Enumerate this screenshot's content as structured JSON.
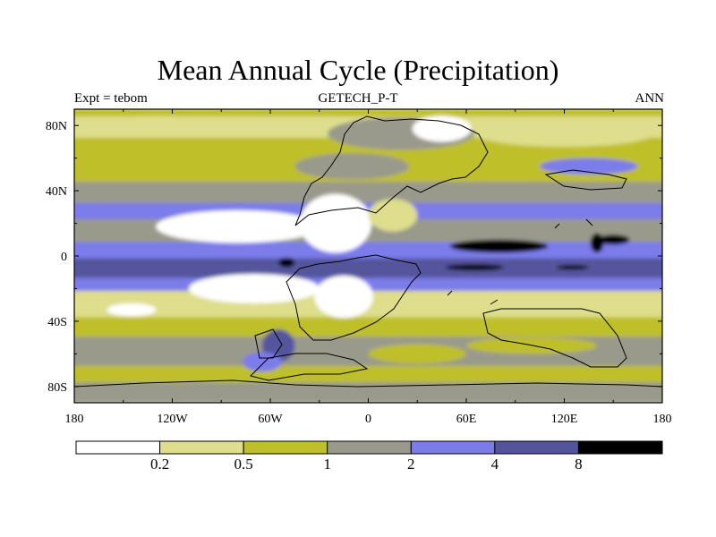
{
  "chart_data": {
    "type": "heatmap",
    "title": "Mean Annual Cycle (Precipitation)",
    "subtitle_left": "Expt = tebom",
    "subtitle_center": "GETECH_P-T",
    "subtitle_right": "ANN",
    "x_ticks": [
      "180",
      "120W",
      "60W",
      "0",
      "60E",
      "120E",
      "180"
    ],
    "x_tick_values": [
      -180,
      -120,
      -60,
      0,
      60,
      120,
      180
    ],
    "y_ticks": [
      "80N",
      "40N",
      "0",
      "40S",
      "80S"
    ],
    "y_tick_values": [
      80,
      40,
      0,
      -40,
      -80
    ],
    "xlim": [
      -180,
      180
    ],
    "ylim": [
      -90,
      90
    ],
    "colorbar": {
      "levels": [
        "0.2",
        "0.5",
        "1",
        "2",
        "4",
        "8"
      ],
      "colors": [
        "#ffffff",
        "#dede8c",
        "#bfbf2a",
        "#9a9a8c",
        "#7b7bea",
        "#54549e",
        "#000000"
      ]
    },
    "bands": [
      {
        "lat0": 90,
        "lat1": 85,
        "color": "#bfbf2a"
      },
      {
        "lat0": 85,
        "lat1": 72,
        "color": "#dede8c"
      },
      {
        "lat0": 72,
        "lat1": 45,
        "color": "#bfbf2a"
      },
      {
        "lat0": 45,
        "lat1": 32,
        "color": "#9a9a8c"
      },
      {
        "lat0": 32,
        "lat1": 22,
        "color": "#7b7bea"
      },
      {
        "lat0": 22,
        "lat1": 8,
        "color": "#9a9a8c"
      },
      {
        "lat0": 8,
        "lat1": -2,
        "color": "#7b7bea"
      },
      {
        "lat0": -2,
        "lat1": -14,
        "color": "#54549e"
      },
      {
        "lat0": -14,
        "lat1": -22,
        "color": "#7b7bea"
      },
      {
        "lat0": -22,
        "lat1": -38,
        "color": "#dede8c"
      },
      {
        "lat0": -38,
        "lat1": -50,
        "color": "#bfbf2a"
      },
      {
        "lat0": -50,
        "lat1": -68,
        "color": "#9a9a8c"
      },
      {
        "lat0": -68,
        "lat1": -78,
        "color": "#bfbf2a"
      },
      {
        "lat0": -78,
        "lat1": -90,
        "color": "#9a9a8c"
      }
    ],
    "patches": [
      {
        "lon": -130,
        "lat": 80,
        "rx": 40,
        "ry": 6,
        "color": "#dede8c"
      },
      {
        "lon": 20,
        "lat": 75,
        "rx": 45,
        "ry": 10,
        "color": "#9a9a8c"
      },
      {
        "lon": 45,
        "lat": 78,
        "rx": 18,
        "ry": 8,
        "color": "#ffffff"
      },
      {
        "lon": 120,
        "lat": 75,
        "rx": 55,
        "ry": 8,
        "color": "#dede8c"
      },
      {
        "lon": 135,
        "lat": 55,
        "rx": 30,
        "ry": 5,
        "color": "#7b7bea"
      },
      {
        "lon": -10,
        "lat": 55,
        "rx": 35,
        "ry": 8,
        "color": "#9a9a8c"
      },
      {
        "lon": -80,
        "lat": 18,
        "rx": 50,
        "ry": 10,
        "color": "#ffffff"
      },
      {
        "lon": -20,
        "lat": 20,
        "rx": 22,
        "ry": 18,
        "color": "#ffffff"
      },
      {
        "lon": 15,
        "lat": 25,
        "rx": 15,
        "ry": 10,
        "color": "#dede8c"
      },
      {
        "lon": 80,
        "lat": 6,
        "rx": 30,
        "ry": 4,
        "color": "#000000"
      },
      {
        "lon": 150,
        "lat": 10,
        "rx": 10,
        "ry": 3,
        "color": "#000000"
      },
      {
        "lon": 140,
        "lat": 8,
        "rx": 4,
        "ry": 6,
        "color": "#000000"
      },
      {
        "lon": 65,
        "lat": -7,
        "rx": 18,
        "ry": 2,
        "color": "#000000"
      },
      {
        "lon": 125,
        "lat": -7,
        "rx": 10,
        "ry": 1.5,
        "color": "#000000"
      },
      {
        "lon": -50,
        "lat": -4,
        "rx": 5,
        "ry": 3,
        "color": "#000000"
      },
      {
        "lon": -70,
        "lat": -20,
        "rx": 40,
        "ry": 9,
        "color": "#ffffff"
      },
      {
        "lon": -15,
        "lat": -25,
        "rx": 18,
        "ry": 13,
        "color": "#ffffff"
      },
      {
        "lon": -145,
        "lat": -33,
        "rx": 15,
        "ry": 4,
        "color": "#ffffff"
      },
      {
        "lon": -55,
        "lat": -55,
        "rx": 10,
        "ry": 10,
        "color": "#54549e"
      },
      {
        "lon": -65,
        "lat": -65,
        "rx": 12,
        "ry": 6,
        "color": "#7b7bea"
      },
      {
        "lon": 30,
        "lat": -60,
        "rx": 30,
        "ry": 6,
        "color": "#bfbf2a"
      },
      {
        "lon": 100,
        "lat": -55,
        "rx": 40,
        "ry": 5,
        "color": "#bfbf2a"
      }
    ]
  }
}
